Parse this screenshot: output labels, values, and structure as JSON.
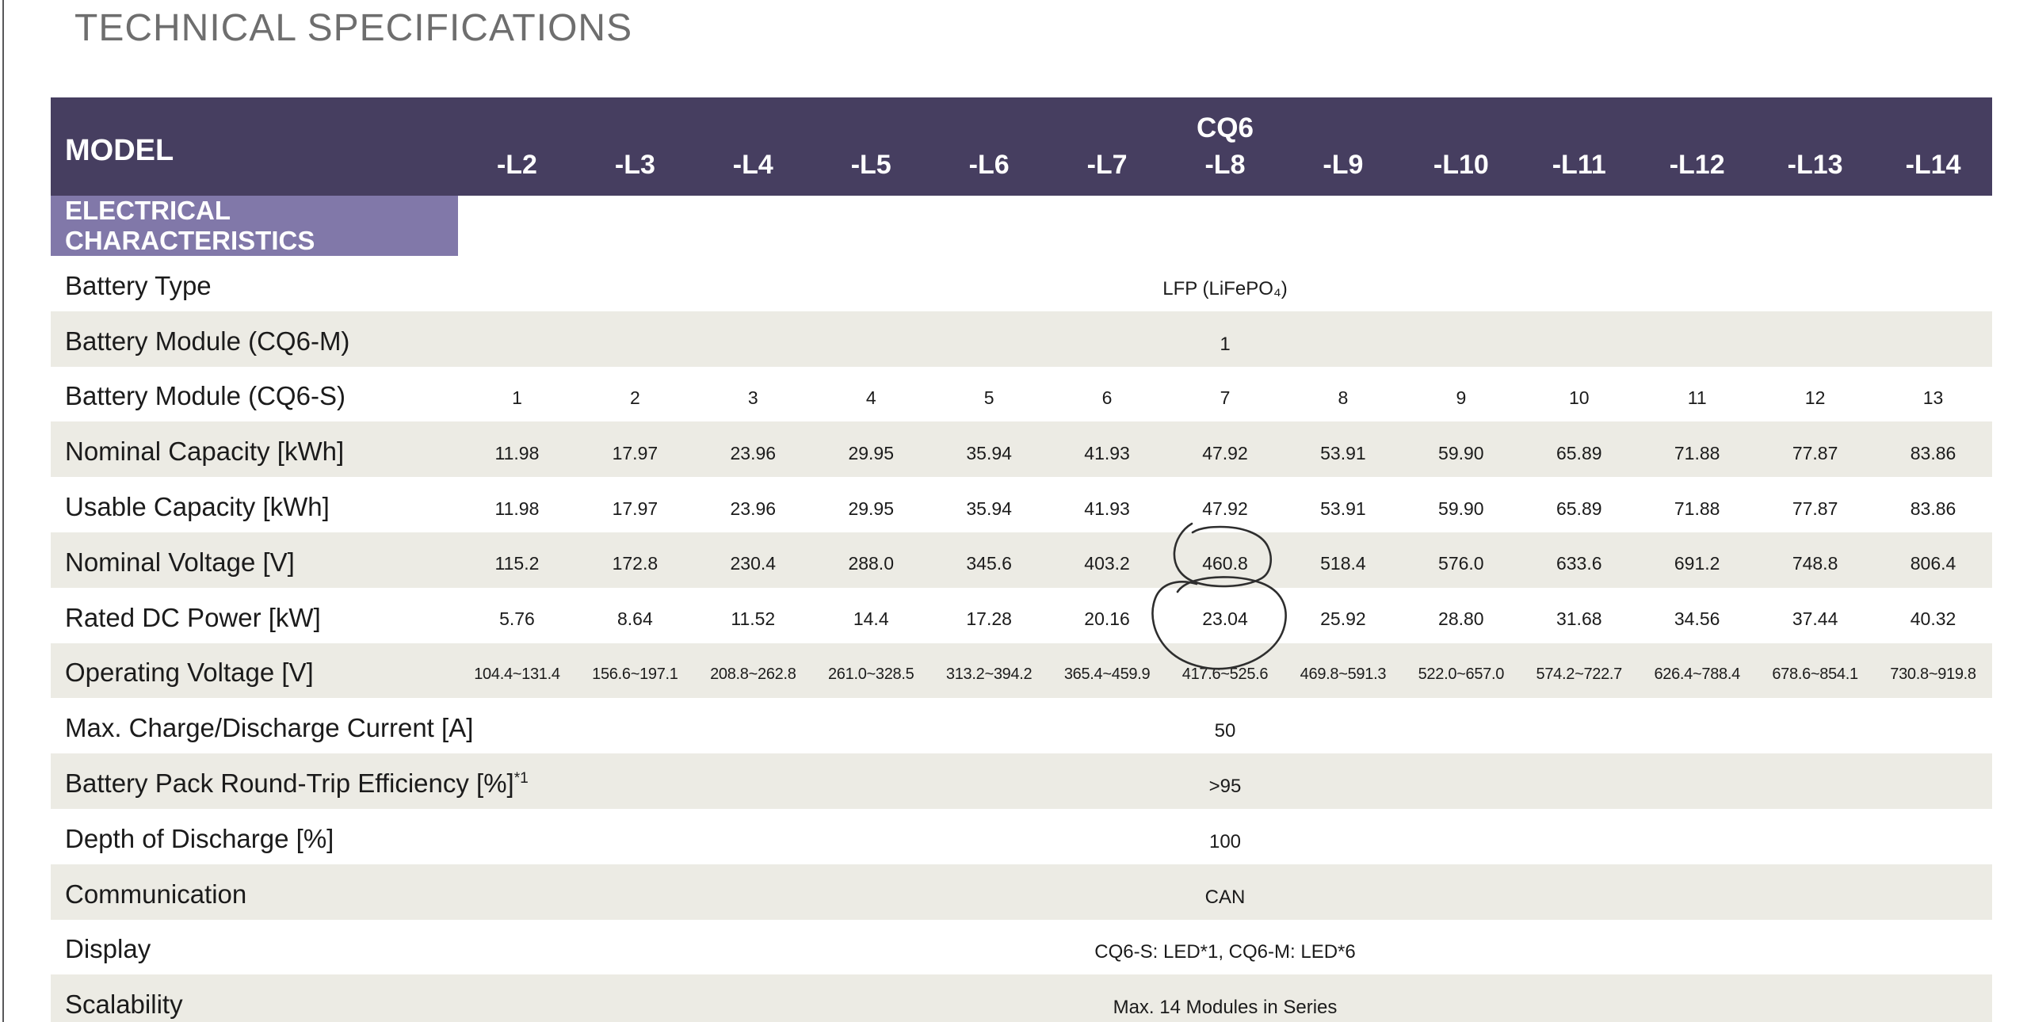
{
  "page": {
    "title": "TECHNICAL SPECIFICATIONS"
  },
  "table": {
    "model_label": "MODEL",
    "family": "CQ6",
    "columns": [
      "-L2",
      "-L3",
      "-L4",
      "-L5",
      "-L6",
      "-L7",
      "-L8",
      "-L9",
      "-L10",
      "-L11",
      "-L12",
      "-L13",
      "-L14"
    ],
    "section_header": "ELECTRICAL CHARACTERISTICS",
    "rows": [
      {
        "label": "Battery Type",
        "kind": "span",
        "value": "LFP (LiFePO₄)"
      },
      {
        "label": "Battery Module (CQ6-M)",
        "kind": "span",
        "value": "1"
      },
      {
        "label": "Battery Module (CQ6-S)",
        "kind": "cells",
        "values": [
          "1",
          "2",
          "3",
          "4",
          "5",
          "6",
          "7",
          "8",
          "9",
          "10",
          "11",
          "12",
          "13"
        ]
      },
      {
        "label": "Nominal Capacity [kWh]",
        "kind": "cells",
        "values": [
          "11.98",
          "17.97",
          "23.96",
          "29.95",
          "35.94",
          "41.93",
          "47.92",
          "53.91",
          "59.90",
          "65.89",
          "71.88",
          "77.87",
          "83.86"
        ]
      },
      {
        "label": "Usable Capacity [kWh]",
        "kind": "cells",
        "values": [
          "11.98",
          "17.97",
          "23.96",
          "29.95",
          "35.94",
          "41.93",
          "47.92",
          "53.91",
          "59.90",
          "65.89",
          "71.88",
          "77.87",
          "83.86"
        ]
      },
      {
        "label": "Nominal Voltage [V]",
        "kind": "cells",
        "values": [
          "115.2",
          "172.8",
          "230.4",
          "288.0",
          "345.6",
          "403.2",
          "460.8",
          "518.4",
          "576.0",
          "633.6",
          "691.2",
          "748.8",
          "806.4"
        ]
      },
      {
        "label": "Rated DC Power [kW]",
        "kind": "cells",
        "values": [
          "5.76",
          "8.64",
          "11.52",
          "14.4",
          "17.28",
          "20.16",
          "23.04",
          "25.92",
          "28.80",
          "31.68",
          "34.56",
          "37.44",
          "40.32"
        ]
      },
      {
        "label": "Operating Voltage [V]",
        "kind": "cells",
        "small": true,
        "values": [
          "104.4~131.4",
          "156.6~197.1",
          "208.8~262.8",
          "261.0~328.5",
          "313.2~394.2",
          "365.4~459.9",
          "417.6~525.6",
          "469.8~591.3",
          "522.0~657.0",
          "574.2~722.7",
          "626.4~788.4",
          "678.6~854.1",
          "730.8~919.8"
        ]
      },
      {
        "label": "Max. Charge/Discharge Current [A]",
        "kind": "span",
        "value": "50"
      },
      {
        "label": "Battery Pack Round-Trip Efficiency [%]",
        "label_sup": "*1",
        "kind": "span",
        "value": ">95"
      },
      {
        "label": "Depth of Discharge [%]",
        "kind": "span",
        "value": "100"
      },
      {
        "label": "Communication",
        "kind": "span",
        "value": "CAN"
      },
      {
        "label": "Display",
        "kind": "span",
        "value": "CQ6-S: LED*1, CQ6-M: LED*6"
      },
      {
        "label": "Scalability",
        "kind": "span",
        "value": "Max. 14 Modules in Series"
      }
    ]
  },
  "annotations": {
    "circles": [
      {
        "shape": "hand-drawn-circle",
        "row": "Nominal Voltage [V]",
        "column": "-L8",
        "value": "460.8"
      },
      {
        "shape": "hand-drawn-circle",
        "row": "Rated DC Power [kW]",
        "column": "-L8",
        "value": "23.04"
      }
    ]
  },
  "colors": {
    "header_bg": "#463E60",
    "banner_bg": "#8178A9",
    "row_alt_bg": "#ECEBE4",
    "title_color": "#6E6E6E",
    "text_color": "#1B1B1B",
    "header_text": "#FFFFFF",
    "edge_line": "#58585A",
    "annotation": "#2E2E2E",
    "page_bg": "#FFFFFF"
  }
}
